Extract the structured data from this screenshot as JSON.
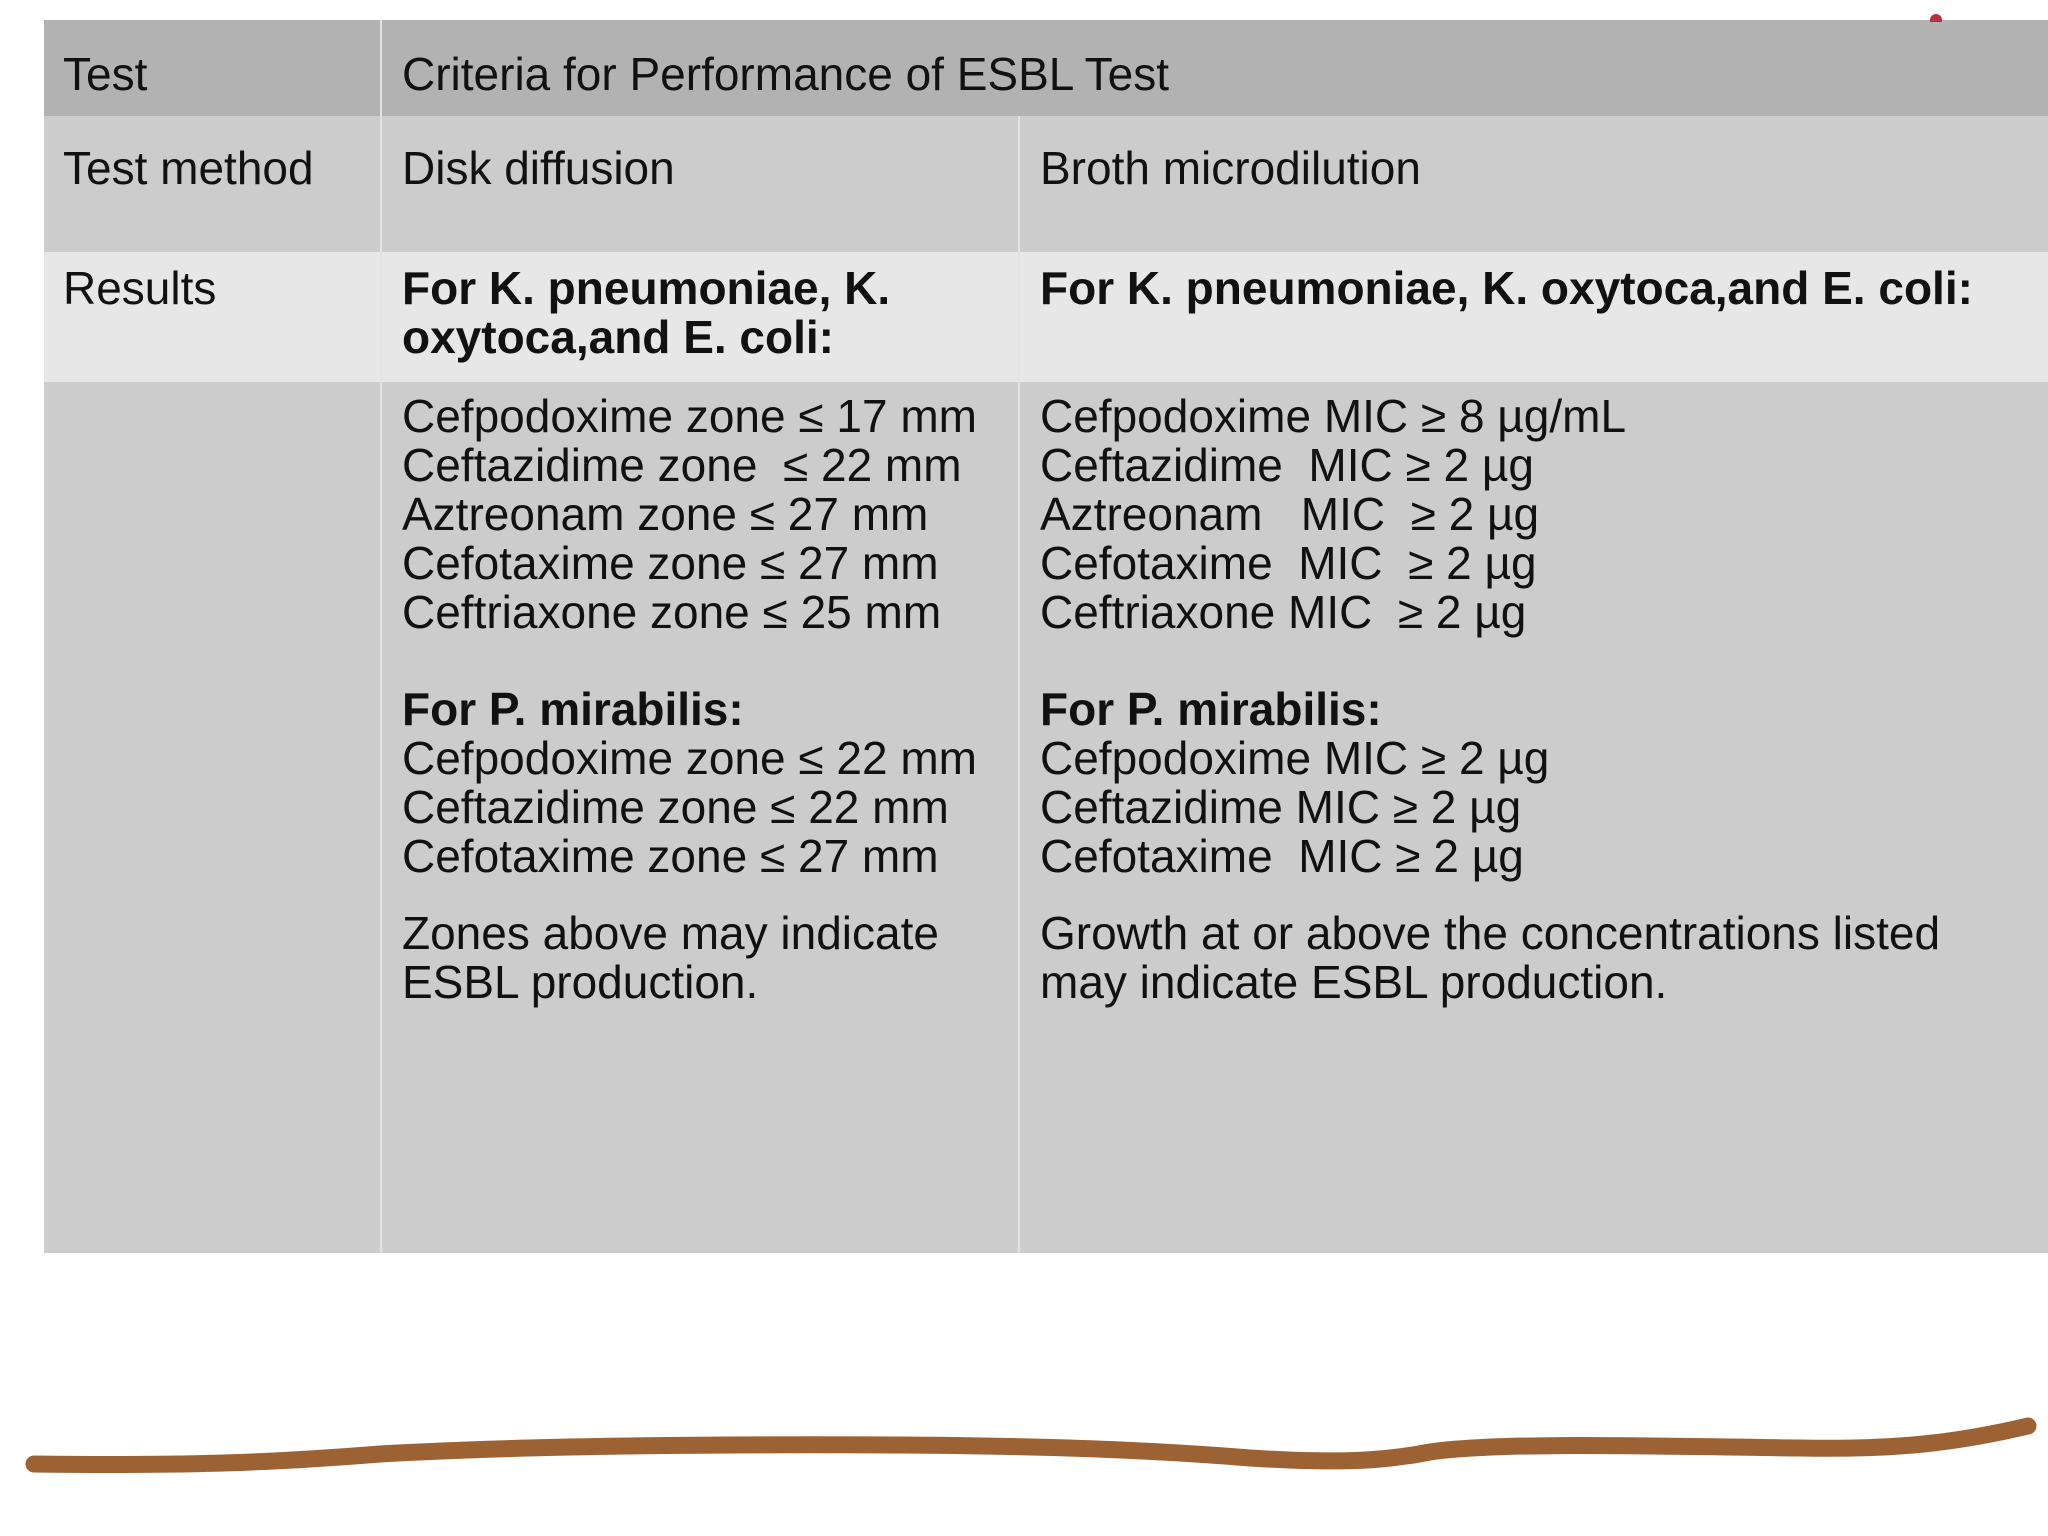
{
  "table": {
    "header": {
      "label": "Test",
      "title": "Criteria for Performance of ESBL Test"
    },
    "method_row": {
      "label": "Test method",
      "col_disk": "Disk diffusion",
      "col_broth": "Broth microdilution"
    },
    "results_row": {
      "label": "Results",
      "col_disk": "For K. pneumoniae, K.\noxytoca,and E. coli:",
      "col_broth": "For K. pneumoniae, K. oxytoca,and E. coli:"
    },
    "disk": {
      "k_group_lines": [
        "Cefpodoxime zone ≤ 17 mm",
        "Ceftazidime zone  ≤ 22 mm",
        "Aztreonam zone ≤ 27 mm",
        "Cefotaxime zone ≤ 27 mm",
        "Ceftriaxone zone ≤ 25 mm"
      ],
      "p_heading": "For P. mirabilis:",
      "p_group_lines": [
        "Cefpodoxime zone ≤ 22 mm",
        "Ceftazidime zone ≤ 22 mm",
        "Cefotaxime zone ≤ 27 mm"
      ],
      "note": "Zones above may indicate\nESBL production."
    },
    "broth": {
      "k_group_lines": [
        "Cefpodoxime MIC ≥ 8 µg/mL",
        "Ceftazidime  MIC ≥ 2 µg",
        "Aztreonam   MIC  ≥ 2 µg",
        "Cefotaxime  MIC  ≥ 2 µg",
        "Ceftriaxone MIC  ≥ 2 µg"
      ],
      "p_heading": "For P. mirabilis:",
      "p_group_lines": [
        "Cefpodoxime MIC ≥ 2 µg",
        "Ceftazidime MIC ≥ 2 µg",
        "Cefotaxime  MIC ≥ 2 µg"
      ],
      "note": "Growth at or above the concentrations listed\nmay indicate ESBL production."
    }
  },
  "colors": {
    "header_bg": "#b2b2b2",
    "row_bg": "#cccccc",
    "results_bg": "#e7e7e7",
    "stroke": "#9c6234"
  }
}
